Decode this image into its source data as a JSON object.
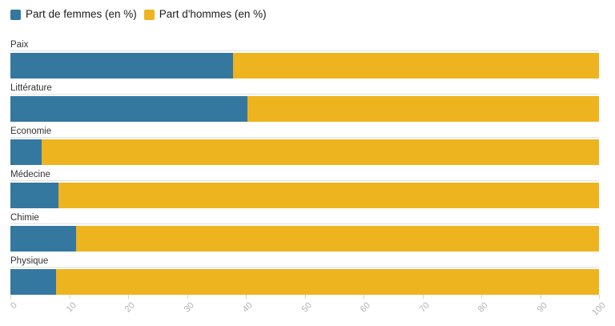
{
  "legend": {
    "items": [
      {
        "label": "Part de femmes (en %)",
        "color": "#34789f"
      },
      {
        "label": "Part d'hommes (en %)",
        "color": "#eeb41f"
      }
    ]
  },
  "chart_data": {
    "type": "bar",
    "orientation": "horizontal",
    "stacked": true,
    "title": "",
    "xlabel": "",
    "ylabel": "",
    "xlim": [
      0,
      100
    ],
    "grid": false,
    "legend_position": "top-left",
    "categories": [
      "Paix",
      "Littérature",
      "Economie",
      "Médecine",
      "Chimie",
      "Physique"
    ],
    "series": [
      {
        "name": "Part de femmes (en %)",
        "color": "#34789f",
        "values": [
          37.8,
          40.3,
          5.3,
          8.1,
          11.1,
          7.7
        ]
      },
      {
        "name": "Part d'hommes (en %)",
        "color": "#eeb41f",
        "values": [
          62.2,
          59.7,
          94.7,
          91.9,
          88.9,
          92.3
        ]
      }
    ],
    "x_ticks": [
      0,
      10,
      20,
      30,
      40,
      50,
      60,
      70,
      80,
      90,
      100
    ]
  },
  "axis": {
    "tick_labels": [
      "0",
      "10",
      "20",
      "30",
      "40",
      "50",
      "60",
      "70",
      "80",
      "90",
      "100"
    ]
  }
}
